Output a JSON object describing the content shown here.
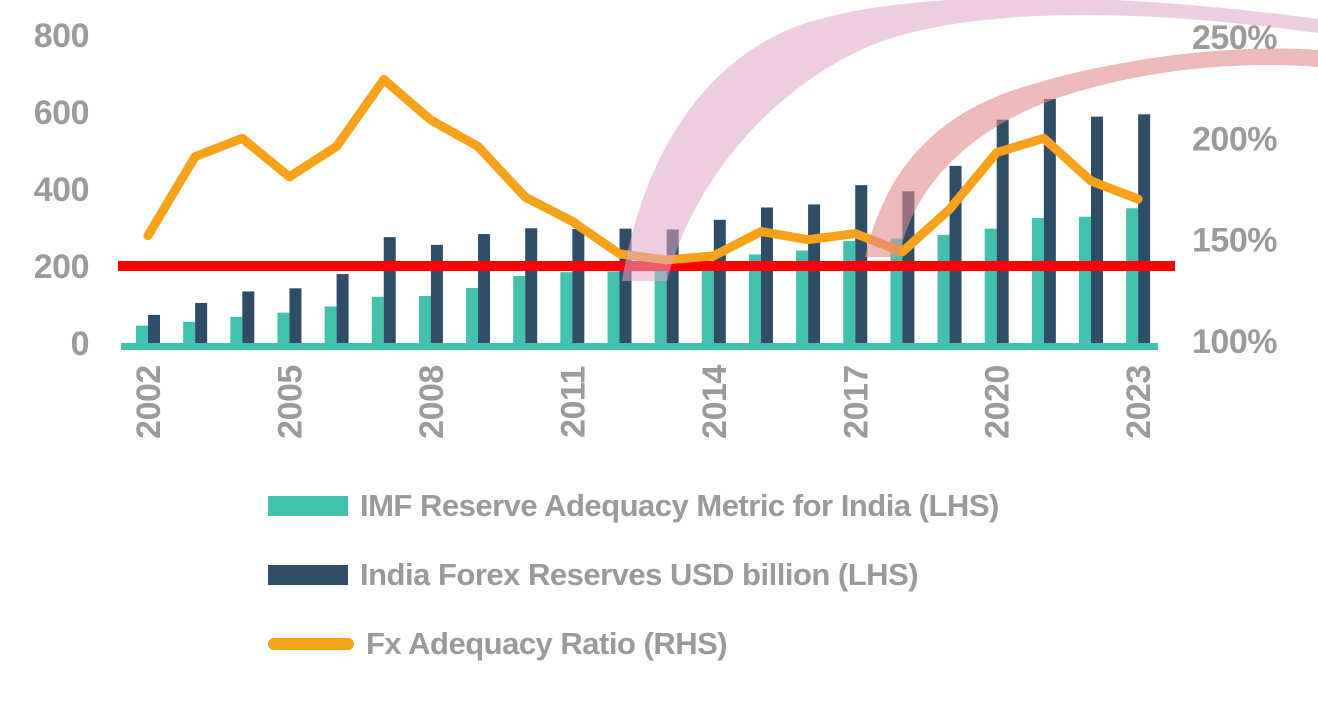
{
  "chart_data": {
    "type": "bar",
    "subtype": "combo-bar-line-dual-axis",
    "title": "",
    "x": [
      2002,
      2003,
      2004,
      2005,
      2006,
      2007,
      2008,
      2009,
      2010,
      2011,
      2012,
      2013,
      2014,
      2015,
      2016,
      2017,
      2018,
      2019,
      2020,
      2021,
      2022,
      2023
    ],
    "x_tick_labels": [
      "2002",
      "2005",
      "2008",
      "2011",
      "2014",
      "2017",
      "2020",
      "2023"
    ],
    "left_axis": {
      "ticks": [
        800,
        600,
        400,
        200,
        0
      ],
      "range": [
        0,
        800
      ],
      "side": "left"
    },
    "right_axis": {
      "ticks": [
        "250%",
        "200%",
        "150%",
        "100%"
      ],
      "tick_values": [
        250,
        200,
        150,
        100
      ],
      "range": [
        100,
        250
      ],
      "side": "right"
    },
    "grid": "off",
    "legend_position": "bottom-left",
    "axis_label_color": "#9b9b9b",
    "series": [
      {
        "name": "IMF Reserve Adequacy Metric for India (LHS)",
        "type": "bar",
        "axis": "left",
        "color": "#43c1ad",
        "values": [
          45,
          55,
          68,
          79,
          95,
          120,
          122,
          143,
          174,
          184,
          186,
          188,
          190,
          230,
          240,
          265,
          271,
          281,
          297,
          325,
          328,
          350
        ]
      },
      {
        "name": "India Forex Reserves USD billion (LHS)",
        "type": "bar",
        "axis": "left",
        "color": "#2f4d66",
        "values": [
          73,
          104,
          134,
          142,
          179,
          275,
          255,
          283,
          298,
          296,
          297,
          295,
          320,
          352,
          360,
          410,
          394,
          460,
          580,
          634,
          588,
          594
        ]
      },
      {
        "name": "Fx Adequacy Ratio (RHS)",
        "type": "line",
        "axis": "right",
        "color": "#f7a21b",
        "values_pct": [
          152,
          191,
          200,
          181,
          196,
          229,
          209,
          196,
          171,
          159,
          143,
          140,
          142,
          154,
          150,
          153,
          144,
          165,
          193,
          200,
          179,
          170
        ]
      }
    ],
    "reference_line": {
      "left_axis_value": 200,
      "color": "#fe0000"
    }
  },
  "decorations": {
    "pink_swoosh_color": "#dfa6c9",
    "salmon_swoosh_color": "#e18a8a"
  }
}
